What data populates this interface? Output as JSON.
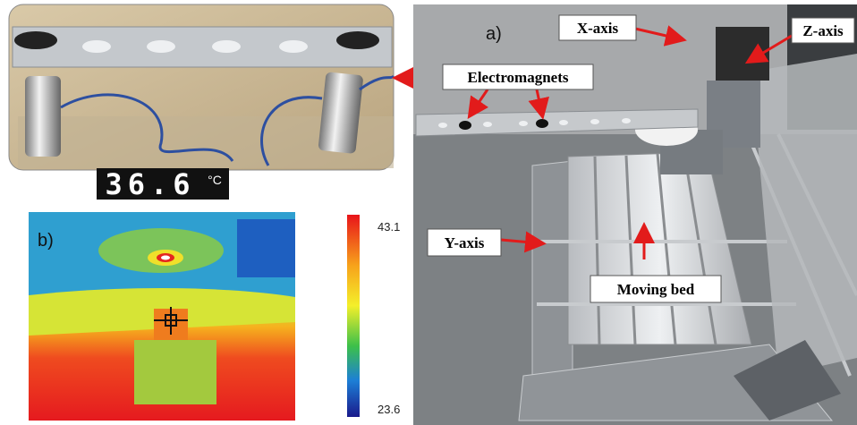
{
  "panel_a": {
    "label": "a)",
    "x_axis": "X-axis",
    "z_axis": "Z-axis",
    "electromagnets": "Electromagnets",
    "y_axis": "Y-axis",
    "moving_bed": "Moving bed"
  },
  "panel_b": {
    "label": "b)",
    "temperature": 36.6,
    "unit": "°C",
    "scale_max": 43.1,
    "scale_min": 23.6
  }
}
